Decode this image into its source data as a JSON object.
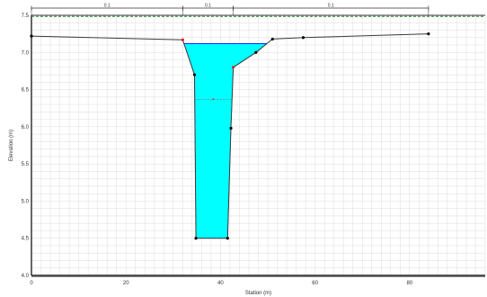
{
  "chart_data": {
    "type": "cross-section",
    "xlabel": "Station (m)",
    "ylabel": "Elevation (m)",
    "xlim": [
      0,
      96
    ],
    "ylim": [
      4.0,
      7.5
    ],
    "x_ticks": [
      0,
      20,
      40,
      60,
      80
    ],
    "y_ticks": [
      4.0,
      4.5,
      5.0,
      5.5,
      6.0,
      6.5,
      7.0,
      7.5
    ],
    "x_tick_labels": [
      "0",
      "20",
      "40",
      "60",
      "80"
    ],
    "y_tick_labels": [
      "4.0",
      "4.5",
      "5.0",
      "5.5",
      "6.0",
      "6.5",
      "7.0",
      "7.5"
    ],
    "grid": true,
    "ground_profile": [
      {
        "x": 0.0,
        "y": 7.22
      },
      {
        "x": 32.0,
        "y": 7.17
      },
      {
        "x": 34.5,
        "y": 6.7
      },
      {
        "x": 34.8,
        "y": 4.5
      },
      {
        "x": 41.5,
        "y": 4.5
      },
      {
        "x": 42.2,
        "y": 5.98
      },
      {
        "x": 42.7,
        "y": 6.8
      },
      {
        "x": 47.5,
        "y": 7.0
      },
      {
        "x": 51.0,
        "y": 7.18
      },
      {
        "x": 57.5,
        "y": 7.2
      },
      {
        "x": 84.0,
        "y": 7.25
      }
    ],
    "ground_points": [
      {
        "x": 0.0,
        "y": 7.22,
        "color": "#000000"
      },
      {
        "x": 32.0,
        "y": 7.17,
        "color": "#e02020"
      },
      {
        "x": 34.5,
        "y": 6.7,
        "color": "#000000"
      },
      {
        "x": 34.8,
        "y": 4.5,
        "color": "#000000"
      },
      {
        "x": 41.5,
        "y": 4.5,
        "color": "#000000"
      },
      {
        "x": 42.2,
        "y": 5.98,
        "color": "#000000"
      },
      {
        "x": 42.7,
        "y": 6.8,
        "color": "#e02020"
      },
      {
        "x": 47.5,
        "y": 7.0,
        "color": "#000000"
      },
      {
        "x": 51.0,
        "y": 7.18,
        "color": "#000000"
      },
      {
        "x": 57.5,
        "y": 7.2,
        "color": "#000000"
      },
      {
        "x": 84.0,
        "y": 7.25,
        "color": "#000000"
      }
    ],
    "water_surface_elevation": 7.12,
    "water_fill_color": "#00ffff",
    "mid_depth_line_elevation": 6.37,
    "reach_lengths": {
      "top_elevation": 7.5,
      "segments": [
        {
          "from": 0.0,
          "to": 32.0,
          "label": "0.1"
        },
        {
          "from": 32.0,
          "to": 42.7,
          "label": "0.1"
        },
        {
          "from": 42.7,
          "to": 84.0,
          "label": "0.1"
        }
      ]
    },
    "colors": {
      "ground_line": "#3a3a3a",
      "grid_line": "#dcdcdc",
      "dashed_top": "#2e8b2e",
      "bank_point": "#e02020"
    }
  }
}
